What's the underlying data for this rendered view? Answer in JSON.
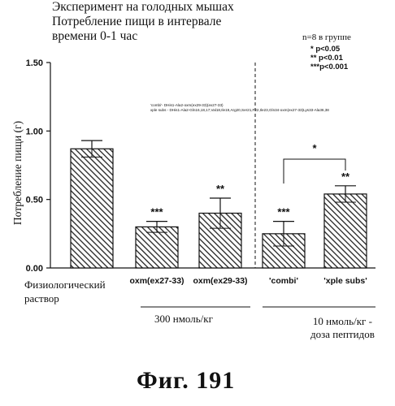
{
  "title_lines": [
    "Эксперимент на голодных мышах",
    "Потребление пищи в интервале",
    "времени 0-1 час"
  ],
  "legend": {
    "group_size": "n=8 в группе",
    "stats": [
      "* p<0.05",
      "** p<0.01",
      "***p<0.001"
    ]
  },
  "annotation": {
    "combi_def": "'combi'- DHis1-Ala2-oxm(ex29-33)(ex27-33)",
    "xple_def": "xple subs - DHis1-Ala2-Gln16,18,17,Val18,Ile19,Arg20,Ser21,F22,Ile23,Gln34-oxm(ex27-33)Lys33-Ala36,38"
  },
  "group_labels": {
    "physiological_line1": "Физиологический",
    "physiological_line2": "раствор",
    "dose_300": "300 нмоль/кг",
    "dose_10_line1": "10 нмоль/кг -",
    "dose_10_line2": "доза пептидов"
  },
  "figure_label": "Фиг. 191",
  "chart_data": {
    "type": "bar",
    "title": "Эксперимент на голодных мышах Потребление пищи в интервале времени 0-1 час",
    "ylabel": "Потребление пищи (г)",
    "xlabel": "",
    "ylim": [
      0,
      1.5
    ],
    "yticks": [
      "0.00",
      "0.50",
      "1.00",
      "1.50"
    ],
    "grid": false,
    "categories": [
      "",
      "oxm(ex27-33)",
      "oxm(ex29-33)",
      "'combi'",
      "'xple subs'"
    ],
    "values": [
      0.87,
      0.3,
      0.4,
      0.25,
      0.54
    ],
    "errors": [
      0.06,
      0.04,
      0.11,
      0.09,
      0.06
    ],
    "significance": [
      "",
      "***",
      "**",
      "***",
      "**"
    ],
    "bracket_label": "*",
    "pattern": "diagonal hatch",
    "bar_color": "#222222"
  }
}
